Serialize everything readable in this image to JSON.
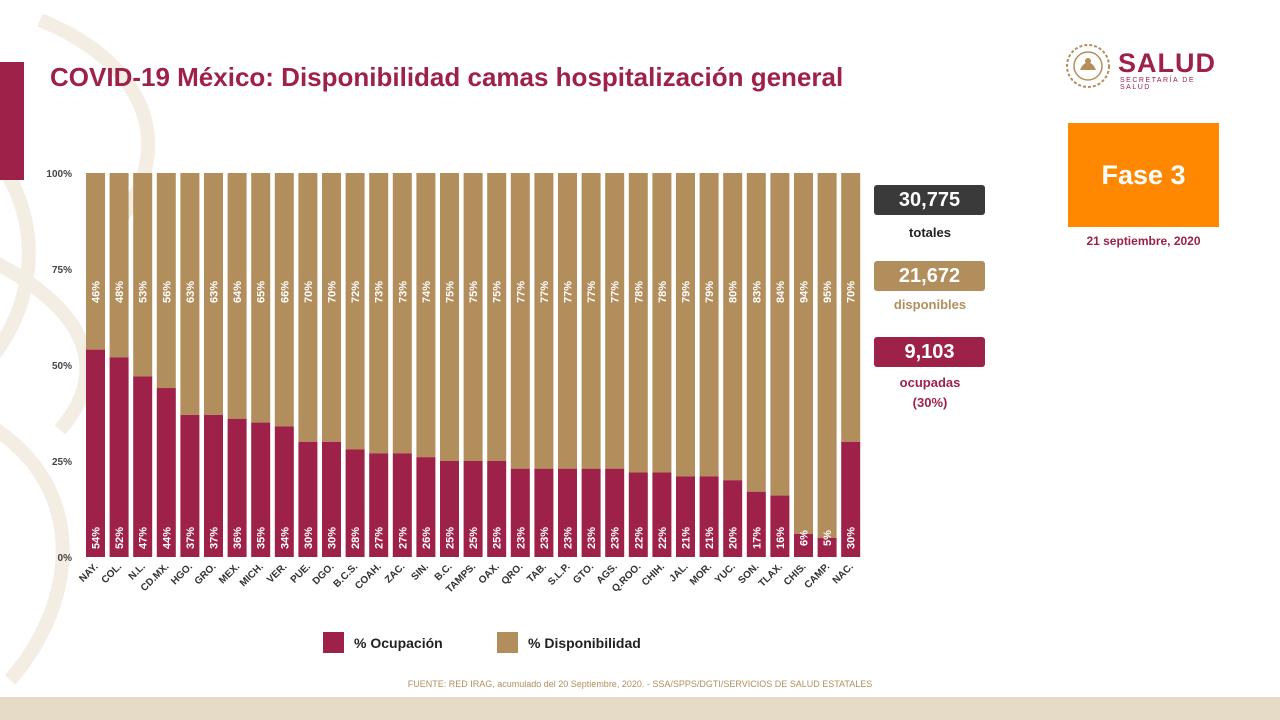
{
  "header": {
    "title": "COVID-19 México: Disponibilidad camas hospitalización general",
    "logo_word": "SALUD",
    "logo_sub": "SECRETARÍA DE SALUD"
  },
  "phase": {
    "label": "Fase 3",
    "date": "21 septiembre, 2020"
  },
  "stats": {
    "total": {
      "value": "30,775",
      "caption": "totales"
    },
    "available": {
      "value": "21,672",
      "caption": "disponibles"
    },
    "occupied": {
      "value": "9,103",
      "caption": "ocupadas",
      "pct": "(30%)"
    }
  },
  "legend": {
    "occupancy": "% Ocupación",
    "availability": "% Disponibilidad"
  },
  "source": "FUENTE: RED IRAG, acumulado del 20 Septiembre, 2020. -  SSA/SPPS/DGTI/SERVICIOS DE SALUD ESTATALES",
  "colors": {
    "occupancy": "#9d2148",
    "availability": "#b38e5d",
    "accent": "#9d2148",
    "phase": "#ff8800",
    "total_box": "#3a3a3a"
  },
  "chart_data": {
    "type": "bar",
    "stacked": true,
    "ylim": [
      0,
      100
    ],
    "y_ticks": [
      "0%",
      "25%",
      "50%",
      "75%",
      "100%"
    ],
    "categories": [
      "NAY.",
      "COL.",
      "N.L.",
      "CD.MX.",
      "HGO.",
      "GRO.",
      "MEX.",
      "MICH.",
      "VER.",
      "PUE.",
      "DGO.",
      "B.C.S.",
      "COAH.",
      "ZAC.",
      "SIN.",
      "B.C.",
      "TAMPS.",
      "OAX.",
      "QRO.",
      "TAB.",
      "S.L.P.",
      "GTO.",
      "AGS.",
      "Q.ROO.",
      "CHIH.",
      "JAL.",
      "MOR.",
      "YUC.",
      "SON.",
      "TLAX.",
      "CHIS.",
      "CAMP.",
      "NAC."
    ],
    "series": [
      {
        "name": "% Ocupación",
        "values": [
          54,
          52,
          47,
          44,
          37,
          37,
          36,
          35,
          34,
          30,
          30,
          28,
          27,
          27,
          26,
          25,
          25,
          25,
          23,
          23,
          23,
          23,
          23,
          22,
          22,
          21,
          21,
          20,
          17,
          16,
          6,
          5,
          30
        ]
      },
      {
        "name": "% Disponibilidad",
        "values": [
          46,
          48,
          53,
          56,
          63,
          63,
          64,
          65,
          66,
          70,
          70,
          72,
          73,
          73,
          74,
          75,
          75,
          75,
          77,
          77,
          77,
          77,
          77,
          78,
          78,
          79,
          79,
          80,
          83,
          84,
          94,
          95,
          70
        ]
      }
    ],
    "legend": "bottom"
  }
}
